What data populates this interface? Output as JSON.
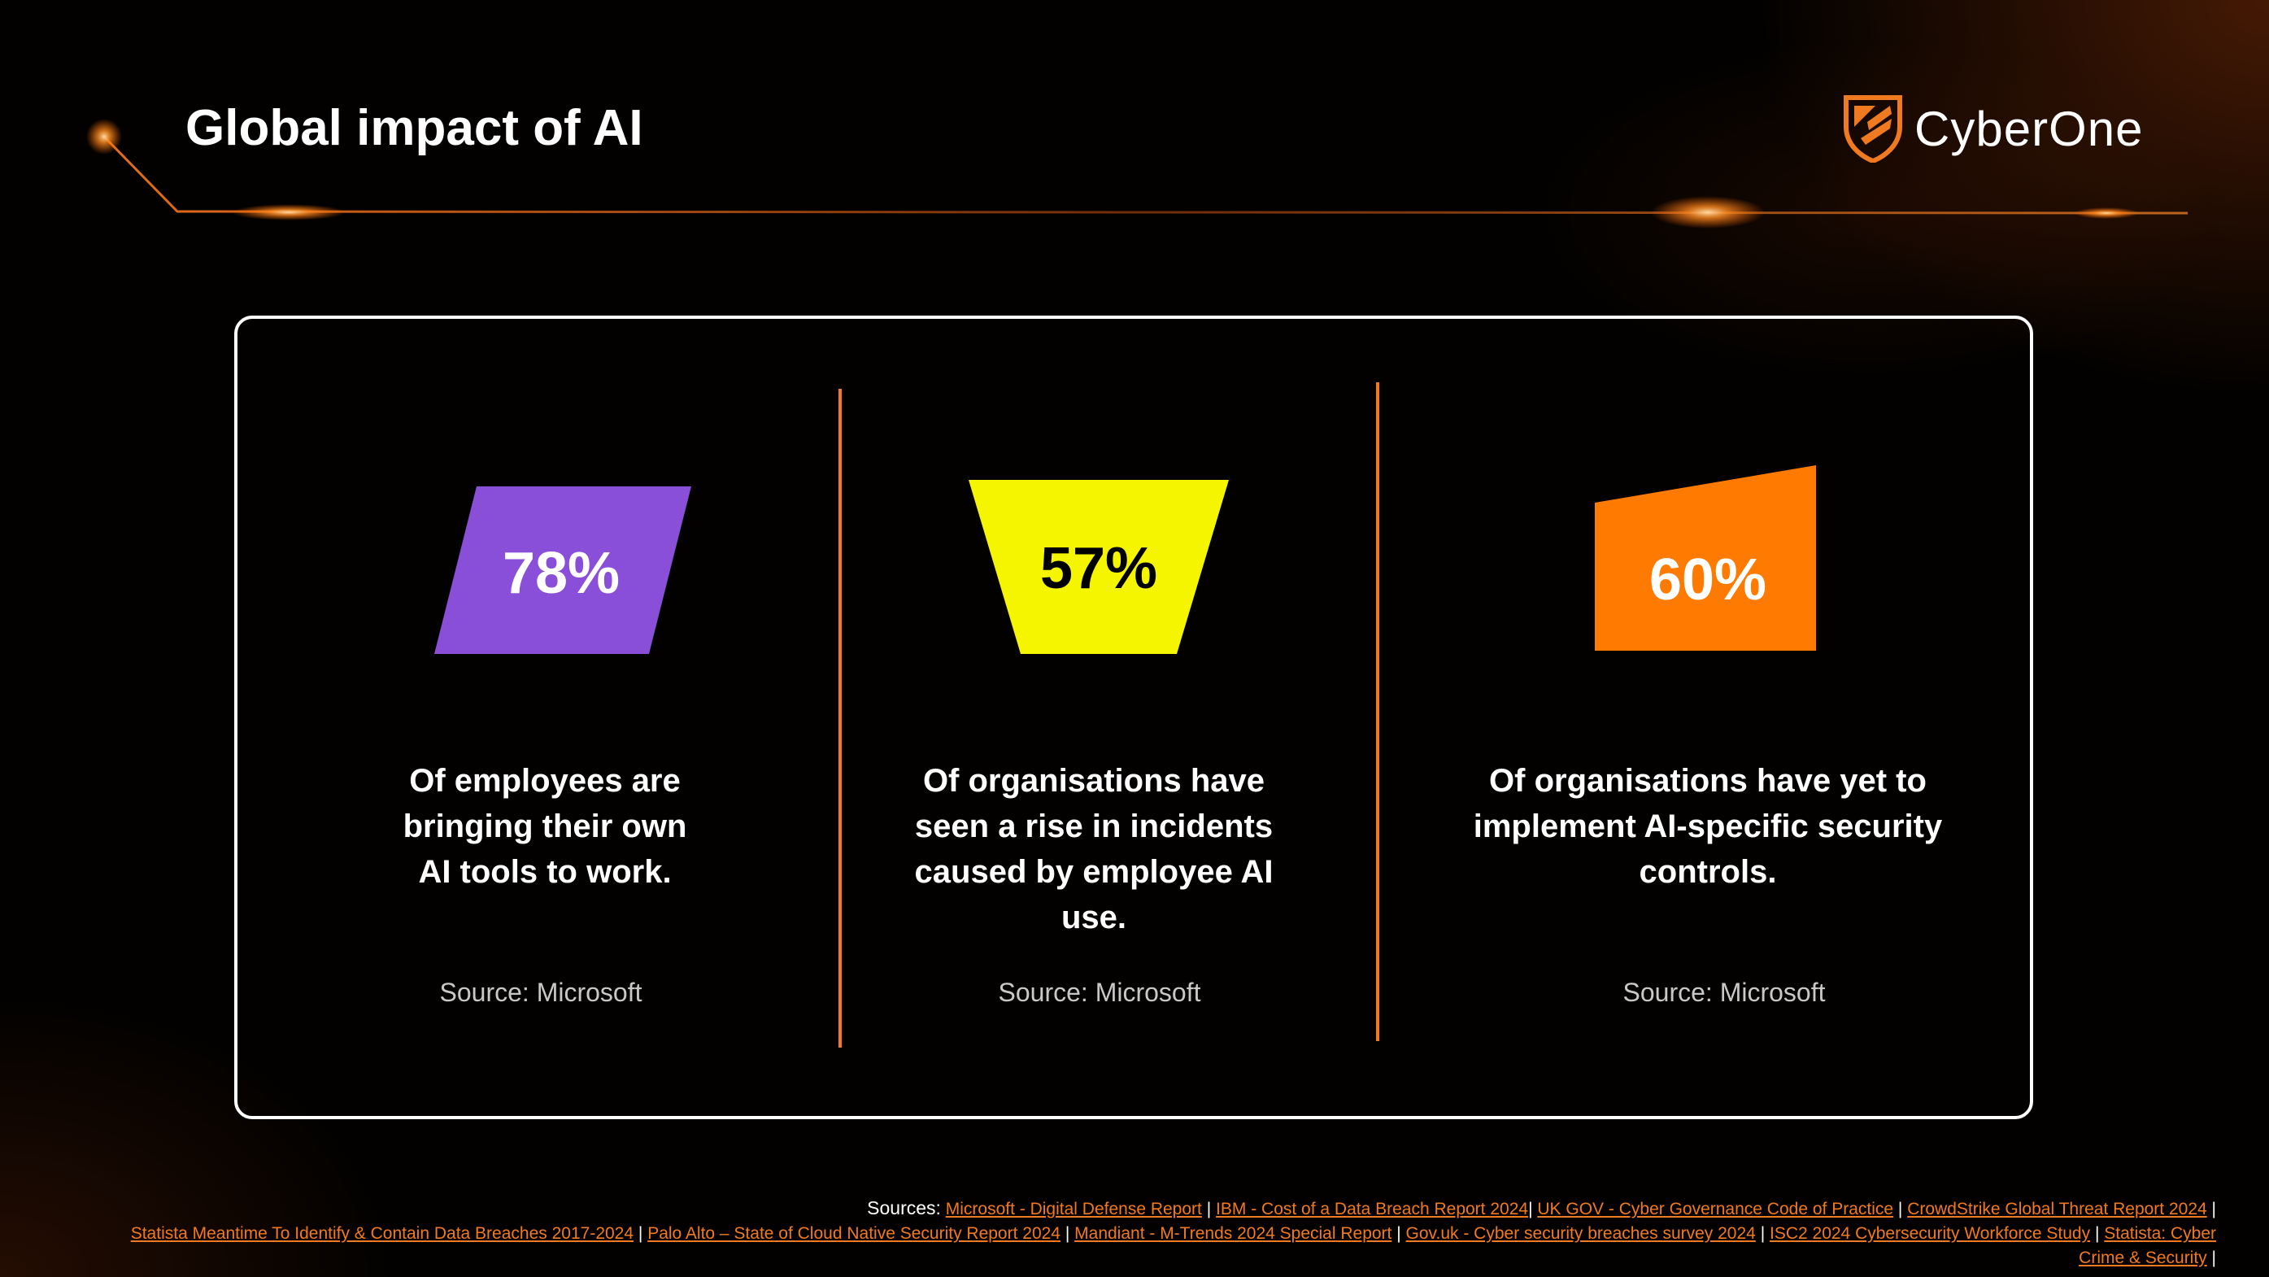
{
  "header": {
    "title": "Global impact of AI"
  },
  "brand": {
    "name": "CyberOne",
    "accent": "#f07a1f"
  },
  "stats": [
    {
      "value": "78%",
      "description": "Of employees are bringing their own AI tools to work.",
      "description_lines": [
        "Of employees are",
        "bringing their own",
        "AI tools to work."
      ],
      "source": "Source: Microsoft",
      "shape_color": "#8a4fd8",
      "text_color": "#ffffff"
    },
    {
      "value": "57%",
      "description": "Of organisations have seen a rise in incidents caused by employee AI use.",
      "description_lines": [
        "Of organisations have",
        "seen a rise in incidents",
        "caused by employee AI",
        "use."
      ],
      "source": "Source: Microsoft",
      "shape_color": "#f5f500",
      "text_color": "#000000"
    },
    {
      "value": "60%",
      "description": "Of organisations have yet to implement AI-specific security controls.",
      "description_lines": [
        "Of organisations have yet to",
        "implement AI-specific security",
        "controls."
      ],
      "source": "Source: Microsoft",
      "shape_color": "#ff7a00",
      "text_color": "#ffffff"
    }
  ],
  "footer": {
    "lead": "Sources:",
    "links": [
      "Microsoft - Digital Defense Report",
      "IBM - Cost of a Data Breach Report 2024",
      "UK GOV - Cyber Governance Code of Practice",
      "CrowdStrike Global Threat Report 2024",
      "Statista Meantime To Identify & Contain Data Breaches 2017-2024",
      "Palo Alto – State of Cloud Native Security Report 2024",
      "Mandiant - M-Trends 2024 Special Report",
      "Gov.uk - Cyber security breaches survey 2024",
      "ISC2 2024 Cybersecurity Workforce Study",
      "Statista: Cyber Crime & Security"
    ],
    "separator": "|"
  }
}
